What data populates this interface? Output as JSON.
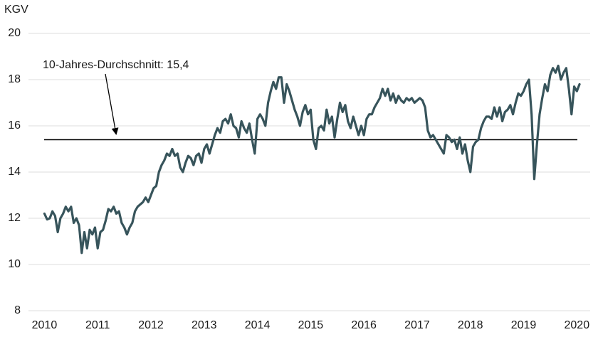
{
  "chart_data": {
    "type": "line",
    "y_label": "KGV",
    "annotation": "10-Jahres-Durchschnitt: 15,4",
    "average": 15.4,
    "xlim": [
      2009.7,
      2020.25
    ],
    "xticks": [
      2010,
      2011,
      2012,
      2013,
      2014,
      2015,
      2016,
      2017,
      2018,
      2019,
      2020
    ],
    "ylim": [
      8,
      20
    ],
    "yticks": [
      8,
      10,
      12,
      14,
      16,
      18,
      20
    ],
    "grid": true,
    "x": [
      2010,
      2010.05,
      2010.1,
      2010.15,
      2010.2,
      2010.25,
      2010.3,
      2010.35,
      2010.4,
      2010.45,
      2010.5,
      2010.55,
      2010.6,
      2010.65,
      2010.7,
      2010.75,
      2010.8,
      2010.85,
      2010.9,
      2010.95,
      2011,
      2011.05,
      2011.1,
      2011.15,
      2011.2,
      2011.25,
      2011.3,
      2011.35,
      2011.4,
      2011.45,
      2011.5,
      2011.55,
      2011.6,
      2011.65,
      2011.7,
      2011.75,
      2011.8,
      2011.85,
      2011.9,
      2011.95,
      2012,
      2012.05,
      2012.1,
      2012.15,
      2012.2,
      2012.25,
      2012.3,
      2012.35,
      2012.4,
      2012.45,
      2012.5,
      2012.55,
      2012.6,
      2012.65,
      2012.7,
      2012.75,
      2012.8,
      2012.85,
      2012.9,
      2012.95,
      2013,
      2013.05,
      2013.1,
      2013.15,
      2013.2,
      2013.25,
      2013.3,
      2013.35,
      2013.4,
      2013.45,
      2013.5,
      2013.55,
      2013.6,
      2013.65,
      2013.7,
      2013.75,
      2013.8,
      2013.85,
      2013.9,
      2013.95,
      2014,
      2014.05,
      2014.1,
      2014.15,
      2014.2,
      2014.25,
      2014.3,
      2014.35,
      2014.4,
      2014.45,
      2014.5,
      2014.55,
      2014.6,
      2014.65,
      2014.7,
      2014.75,
      2014.8,
      2014.85,
      2014.9,
      2014.95,
      2015,
      2015.05,
      2015.1,
      2015.15,
      2015.2,
      2015.25,
      2015.3,
      2015.35,
      2015.4,
      2015.45,
      2015.5,
      2015.55,
      2015.6,
      2015.65,
      2015.7,
      2015.75,
      2015.8,
      2015.85,
      2015.9,
      2015.95,
      2016,
      2016.05,
      2016.1,
      2016.15,
      2016.2,
      2016.25,
      2016.3,
      2016.35,
      2016.4,
      2016.45,
      2016.5,
      2016.55,
      2016.6,
      2016.65,
      2016.7,
      2016.75,
      2016.8,
      2016.85,
      2016.9,
      2016.95,
      2017,
      2017.05,
      2017.1,
      2017.15,
      2017.2,
      2017.25,
      2017.3,
      2017.35,
      2017.4,
      2017.45,
      2017.5,
      2017.55,
      2017.6,
      2017.65,
      2017.7,
      2017.75,
      2017.8,
      2017.85,
      2017.9,
      2017.95,
      2018,
      2018.05,
      2018.1,
      2018.15,
      2018.2,
      2018.25,
      2018.3,
      2018.35,
      2018.4,
      2018.45,
      2018.5,
      2018.55,
      2018.6,
      2018.65,
      2018.7,
      2018.75,
      2018.8,
      2018.85,
      2018.9,
      2018.95,
      2019,
      2019.05,
      2019.1,
      2019.15,
      2019.2,
      2019.25,
      2019.3,
      2019.35,
      2019.4,
      2019.45,
      2019.5,
      2019.55,
      2019.6,
      2019.65,
      2019.7,
      2019.75,
      2019.8,
      2019.85,
      2019.9,
      2019.95,
      2020,
      2020.05
    ],
    "series": [
      {
        "name": "KGV",
        "color": "#37545b",
        "values": [
          12.2,
          11.95,
          12.0,
          12.3,
          12.1,
          11.4,
          12.0,
          12.2,
          12.5,
          12.3,
          12.5,
          11.8,
          12.0,
          11.7,
          10.5,
          11.4,
          10.7,
          11.5,
          11.3,
          11.6,
          10.7,
          11.4,
          11.5,
          11.9,
          12.4,
          12.3,
          12.5,
          12.2,
          12.3,
          11.8,
          11.6,
          11.3,
          11.6,
          11.8,
          12.3,
          12.5,
          12.6,
          12.7,
          12.9,
          12.7,
          13.0,
          13.3,
          13.4,
          14.0,
          14.3,
          14.5,
          14.8,
          14.7,
          15.0,
          14.7,
          14.8,
          14.2,
          14.0,
          14.4,
          14.7,
          14.6,
          14.3,
          14.7,
          14.8,
          14.4,
          15.0,
          15.2,
          14.8,
          15.2,
          15.6,
          15.9,
          15.7,
          16.2,
          16.3,
          16.1,
          16.5,
          16.0,
          15.9,
          15.5,
          16.2,
          15.9,
          15.7,
          16.1,
          15.4,
          14.8,
          16.3,
          16.5,
          16.3,
          16.0,
          17.0,
          17.5,
          17.9,
          17.6,
          18.1,
          18.1,
          17.0,
          17.8,
          17.5,
          17.1,
          16.7,
          16.4,
          16.0,
          16.6,
          16.9,
          16.5,
          16.7,
          15.4,
          15.0,
          15.9,
          16.0,
          15.8,
          16.7,
          16.1,
          16.4,
          15.5,
          16.3,
          17.0,
          16.6,
          16.9,
          16.2,
          15.9,
          16.4,
          16.0,
          15.6,
          16.0,
          15.6,
          16.3,
          16.5,
          16.5,
          16.8,
          17.0,
          17.2,
          17.6,
          17.3,
          17.6,
          17.1,
          17.4,
          17.0,
          17.3,
          17.1,
          17.0,
          17.2,
          17.1,
          17.2,
          17.0,
          17.1,
          17.2,
          17.1,
          16.8,
          15.8,
          15.5,
          15.6,
          15.4,
          15.2,
          15.0,
          14.8,
          15.6,
          15.5,
          15.3,
          15.4,
          15.0,
          15.5,
          14.8,
          15.2,
          14.5,
          14.0,
          15.1,
          15.3,
          15.4,
          15.9,
          16.2,
          16.4,
          16.4,
          16.3,
          16.8,
          16.4,
          16.8,
          16.2,
          16.6,
          16.7,
          16.9,
          16.5,
          17.0,
          17.4,
          17.3,
          17.5,
          17.8,
          18.0,
          16.5,
          13.7,
          15.2,
          16.5,
          17.2,
          17.8,
          17.5,
          18.2,
          18.5,
          18.3,
          18.6,
          18.0,
          18.3,
          18.5,
          17.6,
          16.5,
          17.7,
          17.5,
          17.8
        ]
      }
    ]
  }
}
